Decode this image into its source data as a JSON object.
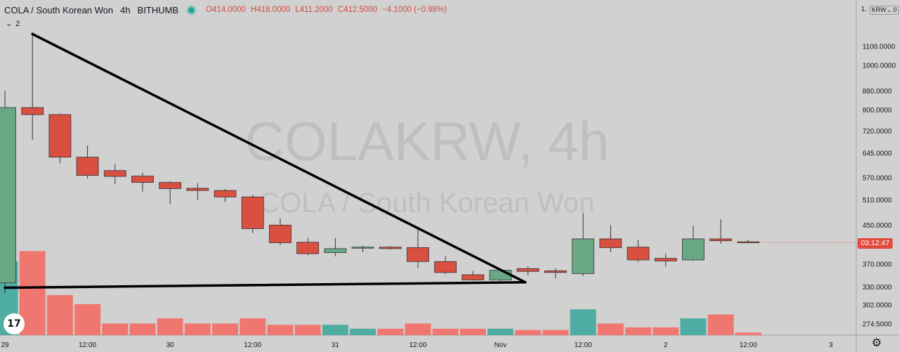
{
  "header": {
    "symbol": "COLA / South Korean Won",
    "timeframe": "4h",
    "exchange": "BITHUMB",
    "open": "O414.0000",
    "high": "H418.0000",
    "low": "L411.2000",
    "close": "C412.5000",
    "change": "−4.1000 (−0.98%)"
  },
  "indicator_toggle": "2",
  "watermark": {
    "line1": "COLAKRW, 4h",
    "line2": "COLA / South Korean Won"
  },
  "price_axis": {
    "currency": "KRW",
    "top_label": "1.",
    "top_label_right": ".0",
    "countdown": "03:12:47"
  },
  "colors": {
    "up": "#6aa885",
    "down": "#d94f40",
    "vol_up": "#4fada3",
    "vol_down": "#ef7770",
    "background": "#d1d1d1",
    "countdown_bg": "#e34b3f"
  },
  "icons": {
    "tv_logo": "17",
    "settings": "gear-icon"
  },
  "chart_data": {
    "type": "candlestick",
    "y_scale": "log",
    "y_ticks": [
      274.5,
      302.0,
      330.0,
      370.0,
      410.0,
      450.0,
      510.0,
      570.0,
      645.0,
      720.0,
      800.0,
      880.0,
      1000.0,
      1100.0
    ],
    "y_tick_labels": [
      "274.5000",
      "302.0000",
      "330.0000",
      "370.0000",
      "410.0000",
      "450.0000",
      "510.0000",
      "570.0000",
      "645.0000",
      "720.0000",
      "800.0000",
      "880.0000",
      "1000.0000",
      "1100.0000"
    ],
    "x_tick_labels": [
      {
        "label": "29",
        "i": 0
      },
      {
        "label": "12:00",
        "i": 3
      },
      {
        "label": "30",
        "i": 6
      },
      {
        "label": "12:00",
        "i": 9
      },
      {
        "label": "31",
        "i": 12
      },
      {
        "label": "12:00",
        "i": 15
      },
      {
        "label": "Nov",
        "i": 18
      },
      {
        "label": "12:00",
        "i": 21
      },
      {
        "label": "2",
        "i": 24
      },
      {
        "label": "12:00",
        "i": 27
      },
      {
        "label": "3",
        "i": 30
      }
    ],
    "candles": [
      {
        "o": 337,
        "h": 880,
        "l": 320,
        "c": 810
      },
      {
        "o": 810,
        "h": 1180,
        "l": 690,
        "c": 782
      },
      {
        "o": 782,
        "h": 787,
        "l": 613,
        "c": 632
      },
      {
        "o": 632,
        "h": 670,
        "l": 568,
        "c": 577
      },
      {
        "o": 591,
        "h": 610,
        "l": 552,
        "c": 574
      },
      {
        "o": 575,
        "h": 585,
        "l": 532,
        "c": 557
      },
      {
        "o": 557,
        "h": 560,
        "l": 500,
        "c": 540
      },
      {
        "o": 541,
        "h": 555,
        "l": 510,
        "c": 535
      },
      {
        "o": 535,
        "h": 539,
        "l": 505,
        "c": 518
      },
      {
        "o": 518,
        "h": 524,
        "l": 432,
        "c": 442
      },
      {
        "o": 450,
        "h": 465,
        "l": 407,
        "c": 412
      },
      {
        "o": 413,
        "h": 422,
        "l": 387,
        "c": 390
      },
      {
        "o": 392,
        "h": 422,
        "l": 385,
        "c": 400
      },
      {
        "o": 401,
        "h": 406,
        "l": 393,
        "c": 403
      },
      {
        "o": 403,
        "h": 405,
        "l": 398,
        "c": 400
      },
      {
        "o": 402,
        "h": 440,
        "l": 363,
        "c": 375
      },
      {
        "o": 375,
        "h": 385,
        "l": 352,
        "c": 355
      },
      {
        "o": 351,
        "h": 358,
        "l": 341,
        "c": 342
      },
      {
        "o": 342,
        "h": 361,
        "l": 340,
        "c": 359
      },
      {
        "o": 362,
        "h": 366,
        "l": 350,
        "c": 357
      },
      {
        "o": 358,
        "h": 363,
        "l": 345,
        "c": 355
      },
      {
        "o": 353,
        "h": 478,
        "l": 349,
        "c": 420
      },
      {
        "o": 420,
        "h": 450,
        "l": 393,
        "c": 402
      },
      {
        "o": 403,
        "h": 418,
        "l": 374,
        "c": 378
      },
      {
        "o": 381,
        "h": 390,
        "l": 366,
        "c": 376
      },
      {
        "o": 378,
        "h": 448,
        "l": 376,
        "c": 420
      },
      {
        "o": 420,
        "h": 463,
        "l": 410,
        "c": 416
      },
      {
        "o": 414,
        "h": 418,
        "l": 411.2,
        "c": 412.5
      }
    ],
    "volume": [
      0.57,
      0.65,
      0.31,
      0.24,
      0.09,
      0.09,
      0.13,
      0.09,
      0.09,
      0.13,
      0.08,
      0.08,
      0.08,
      0.05,
      0.05,
      0.09,
      0.05,
      0.05,
      0.05,
      0.04,
      0.04,
      0.2,
      0.09,
      0.06,
      0.06,
      0.13,
      0.16,
      0.02
    ],
    "trendlines": [
      {
        "from": {
          "i": 1,
          "price": 1170
        },
        "to": {
          "i": 18.9,
          "price": 338
        }
      },
      {
        "from": {
          "i": 0,
          "price": 329
        },
        "to": {
          "i": 18.9,
          "price": 338
        }
      }
    ]
  }
}
